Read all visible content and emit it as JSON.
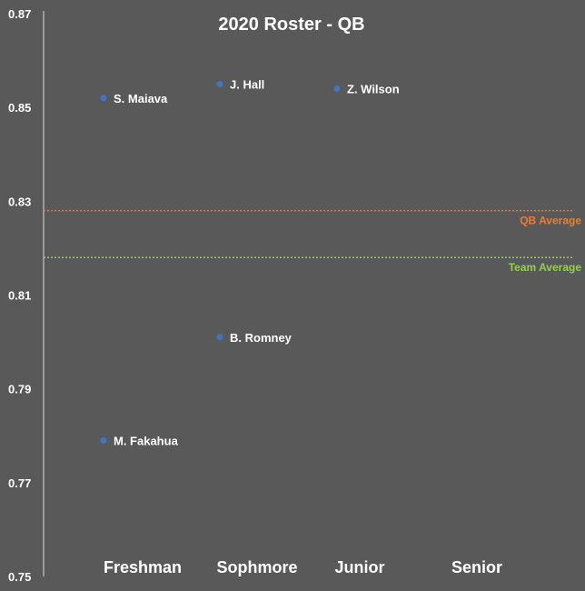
{
  "chart_data": {
    "type": "scatter",
    "title": "2020 Roster - QB",
    "categories": [
      "Freshman",
      "Sophmore",
      "Junior",
      "Senior"
    ],
    "ylim": [
      0.75,
      0.87
    ],
    "yticks": [
      "0.75",
      "0.77",
      "0.79",
      "0.81",
      "0.83",
      "0.85",
      "0.87"
    ],
    "points": [
      {
        "label": "S. Maiava",
        "category": "Freshman",
        "y": 0.852
      },
      {
        "label": "M. Fakahua",
        "category": "Freshman",
        "y": 0.779
      },
      {
        "label": "J. Hall",
        "category": "Sophmore",
        "y": 0.855
      },
      {
        "label": "B. Romney",
        "category": "Sophmore",
        "y": 0.801
      },
      {
        "label": "Z. Wilson",
        "category": "Junior",
        "y": 0.854
      }
    ],
    "reference_lines": [
      {
        "label": "QB Average",
        "y": 0.828,
        "color": "#ED7D31"
      },
      {
        "label": "Team Average",
        "y": 0.818,
        "color": "#92D050"
      }
    ],
    "colors": {
      "point": "#4472C4",
      "background": "#595959",
      "text": "#FFFFFF",
      "axis": "#D9D9D9"
    },
    "grid": false,
    "legend": "none"
  }
}
